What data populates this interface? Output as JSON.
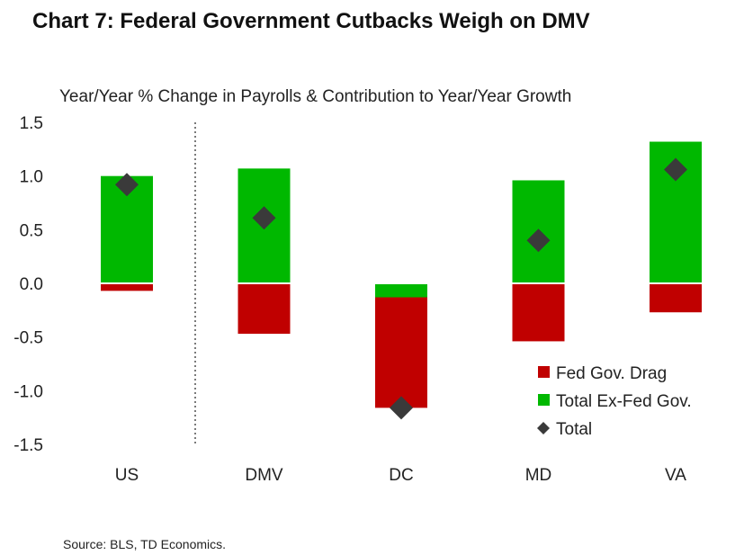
{
  "chart_data": {
    "type": "bar",
    "title": "Chart 7: Federal Government Cutbacks Weigh on DMV",
    "subtitle": "Year/Year % Change in Payrolls & Contribution to Year/Year Growth",
    "categories": [
      "US",
      "DMV",
      "DC",
      "MD",
      "VA"
    ],
    "series": [
      {
        "name": "Fed Gov. Drag",
        "kind": "stacked-bar",
        "color": "#c00000",
        "values": [
          -0.07,
          -0.47,
          -1.03,
          -0.54,
          -0.27
        ]
      },
      {
        "name": "Total Ex-Fed Gov.",
        "kind": "stacked-bar",
        "color": "#00b800",
        "values": [
          1.0,
          1.07,
          -0.13,
          0.96,
          1.32
        ]
      },
      {
        "name": "Total",
        "kind": "marker-diamond",
        "color": "#3a3a3a",
        "values": [
          0.92,
          0.61,
          -1.16,
          0.4,
          1.06
        ]
      }
    ],
    "ylim": [
      -1.5,
      1.5
    ],
    "yticks": [
      "1.5",
      "1.0",
      "0.5",
      "0.0",
      "-0.5",
      "-1.0",
      "-1.5"
    ],
    "ytick_values": [
      1.5,
      1.0,
      0.5,
      0.0,
      -0.5,
      -1.0,
      -1.5
    ],
    "legend_position": "bottom-right",
    "source": "Source: BLS, TD Economics."
  }
}
